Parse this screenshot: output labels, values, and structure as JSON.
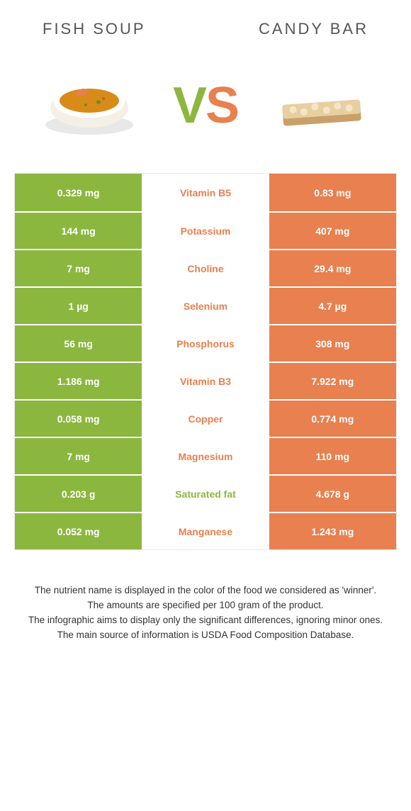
{
  "header": {
    "left_title": "FISH SOUP",
    "right_title": "CANDY BAR"
  },
  "colors": {
    "left": "#8bb73f",
    "right": "#e8804f",
    "vs_left": "#8bb73f",
    "vs_right": "#e8804f"
  },
  "vs": {
    "v": "V",
    "s": "S"
  },
  "rows": [
    {
      "left": "0.329 mg",
      "label": "Vitamin B5",
      "right": "0.83 mg",
      "winner": "right"
    },
    {
      "left": "144 mg",
      "label": "Potassium",
      "right": "407 mg",
      "winner": "right"
    },
    {
      "left": "7 mg",
      "label": "Choline",
      "right": "29.4 mg",
      "winner": "right"
    },
    {
      "left": "1 µg",
      "label": "Selenium",
      "right": "4.7 µg",
      "winner": "right"
    },
    {
      "left": "56 mg",
      "label": "Phosphorus",
      "right": "308 mg",
      "winner": "right"
    },
    {
      "left": "1.186 mg",
      "label": "Vitamin B3",
      "right": "7.922 mg",
      "winner": "right"
    },
    {
      "left": "0.058 mg",
      "label": "Copper",
      "right": "0.774 mg",
      "winner": "right"
    },
    {
      "left": "7 mg",
      "label": "Magnesium",
      "right": "110 mg",
      "winner": "right"
    },
    {
      "left": "0.203 g",
      "label": "Saturated fat",
      "right": "4.678 g",
      "winner": "left"
    },
    {
      "left": "0.052 mg",
      "label": "Manganese",
      "right": "1.243 mg",
      "winner": "right"
    }
  ],
  "footer": {
    "l1": "The nutrient name is displayed in the color of the food we considered as 'winner'.",
    "l2": "The amounts are specified per 100 gram of the product.",
    "l3": "The infographic aims to display only the significant differences, ignoring minor ones.",
    "l4": "The main source of information is USDA Food Composition Database."
  }
}
